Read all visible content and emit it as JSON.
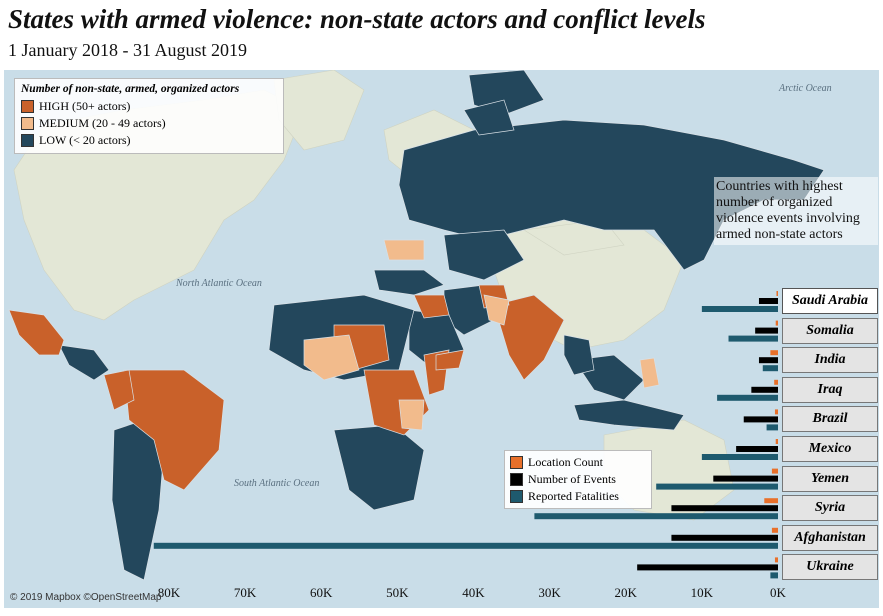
{
  "title": "States with armed violence: non-state actors and conflict levels",
  "subtitle": "1 January 2018 - 31 August 2019",
  "legend": {
    "title": "Number of non-state, armed, organized actors",
    "items": [
      {
        "label": "HIGH (50+ actors)",
        "color": "#c9612a"
      },
      {
        "label": "MEDIUM (20 - 49 actors)",
        "color": "#f2bb8c"
      },
      {
        "label": "LOW (< 20 actors)",
        "color": "#23475c"
      }
    ]
  },
  "note": "Countries with highest number of organized violence events involving armed non-state actors",
  "oceans": {
    "arctic": "Arctic Ocean",
    "north_atlantic": "North Atlantic Ocean",
    "south_atlantic": "South Atlantic Ocean"
  },
  "bar_legend": [
    {
      "label": "Location Count",
      "color": "#e8702a"
    },
    {
      "label": "Number of Events",
      "color": "#000000"
    },
    {
      "label": "Reported Fatalities",
      "color": "#1e5a6e"
    }
  ],
  "chart_data": {
    "type": "bar",
    "orientation": "horizontal-right-aligned",
    "categories": [
      "Saudi Arabia",
      "Somalia",
      "India",
      "Iraq",
      "Brazil",
      "Mexico",
      "Yemen",
      "Syria",
      "Afghanistan",
      "Ukraine"
    ],
    "series": [
      {
        "name": "Location Count",
        "values": [
          200,
          300,
          1000,
          500,
          400,
          300,
          800,
          1800,
          800,
          400
        ]
      },
      {
        "name": "Number of Events",
        "values": [
          2500,
          3000,
          2500,
          3500,
          4500,
          5500,
          8500,
          14000,
          14000,
          18500
        ]
      },
      {
        "name": "Reported Fatalities",
        "values": [
          10000,
          6500,
          2000,
          8000,
          1500,
          10000,
          16000,
          32000,
          82000,
          1000
        ]
      }
    ],
    "x_ticks": [
      "80K",
      "70K",
      "60K",
      "50K",
      "40K",
      "30K",
      "20K",
      "10K",
      "0K"
    ],
    "xlim": [
      0,
      84000
    ]
  },
  "copyright": "© 2019 Mapbox ©OpenStreetMap"
}
